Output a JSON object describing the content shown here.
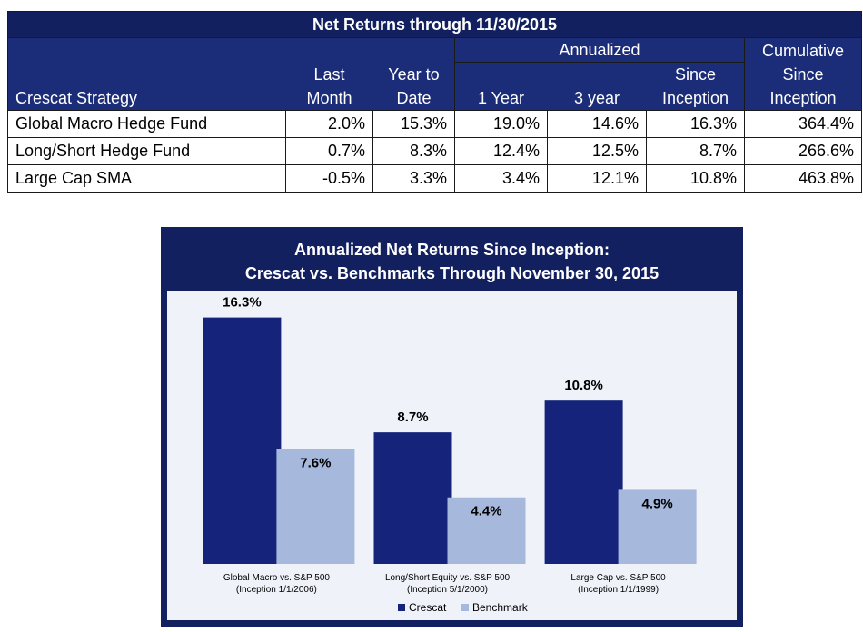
{
  "table": {
    "title": "Net Returns through 11/30/2015",
    "headers": {
      "strategy": "Crescat Strategy",
      "last_month": [
        "Last",
        "Month"
      ],
      "ytd": [
        "Year to",
        "Date"
      ],
      "annualized": "Annualized",
      "one_year": "1 Year",
      "three_year": "3 year",
      "since_inception": [
        "Since",
        "Inception"
      ],
      "cumulative": [
        "Cumulative",
        "Since",
        "Inception"
      ]
    },
    "rows": [
      {
        "name": "Global Macro Hedge Fund",
        "last_month": "2.0%",
        "ytd": "15.3%",
        "one_year": "19.0%",
        "three_year": "14.6%",
        "since_inception": "16.3%",
        "cumulative": "364.4%"
      },
      {
        "name": "Long/Short Hedge Fund",
        "last_month": "0.7%",
        "ytd": "8.3%",
        "one_year": "12.4%",
        "three_year": "12.5%",
        "since_inception": "8.7%",
        "cumulative": "266.6%"
      },
      {
        "name": "Large Cap SMA",
        "last_month": "-0.5%",
        "ytd": "3.3%",
        "one_year": "3.4%",
        "three_year": "12.1%",
        "since_inception": "10.8%",
        "cumulative": "463.8%"
      }
    ]
  },
  "chart_data": {
    "type": "bar",
    "title": [
      "Annualized Net Returns Since Inception:",
      "Crescat vs. Benchmarks Through November 30, 2015"
    ],
    "categories": [
      [
        "Global Macro vs. S&P 500",
        "(Inception 1/1/2006)"
      ],
      [
        "Long/Short Equity vs. S&P 500",
        "(Inception 5/1/2000)"
      ],
      [
        "Large Cap vs. S&P 500",
        "(Inception 1/1/1999)"
      ]
    ],
    "series": [
      {
        "name": "Crescat",
        "values": [
          16.3,
          8.7,
          10.8
        ],
        "labels": [
          "16.3%",
          "8.7%",
          "10.8%"
        ],
        "color": "#15237a"
      },
      {
        "name": "Benchmark",
        "values": [
          7.6,
          4.4,
          4.9
        ],
        "labels": [
          "7.6%",
          "4.4%",
          "4.9%"
        ],
        "color": "#a6b8dc"
      }
    ],
    "ylim": [
      0,
      18
    ],
    "grid": false,
    "legend": "bottom",
    "colors": {
      "panel": "#12205f",
      "plot_bg": "#eff2f8"
    }
  }
}
